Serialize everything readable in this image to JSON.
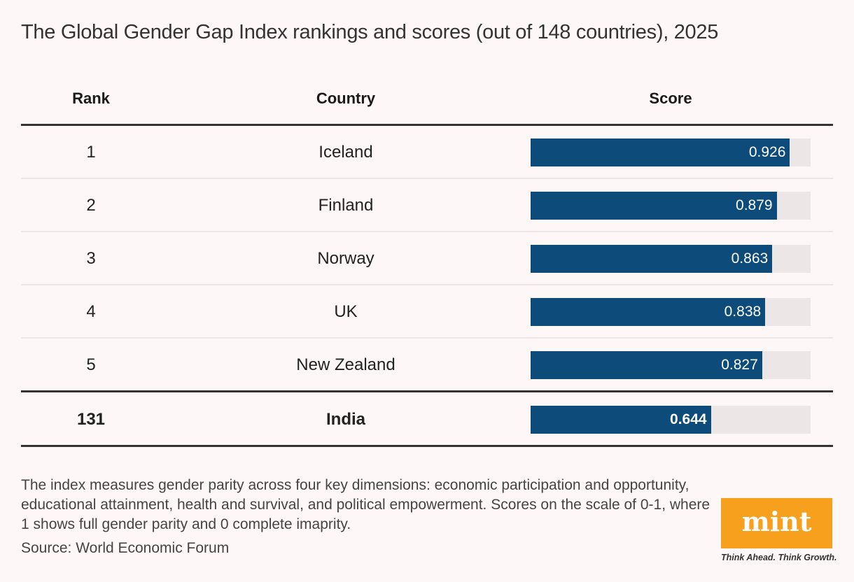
{
  "chart_data": {
    "type": "table",
    "title": "The Global Gender Gap Index rankings and scores (out of 148 countries), 2025",
    "columns": [
      "Rank",
      "Country",
      "Score"
    ],
    "xlim": [
      0,
      1
    ],
    "rows": [
      {
        "rank": "1",
        "country": "Iceland",
        "score": 0.926,
        "label": "0.926"
      },
      {
        "rank": "2",
        "country": "Finland",
        "score": 0.879,
        "label": "0.879"
      },
      {
        "rank": "3",
        "country": "Norway",
        "score": 0.863,
        "label": "0.863"
      },
      {
        "rank": "4",
        "country": "UK",
        "score": 0.838,
        "label": "0.838"
      },
      {
        "rank": "5",
        "country": "New Zealand",
        "score": 0.827,
        "label": "0.827"
      }
    ],
    "highlight": {
      "rank": "131",
      "country": "India",
      "score": 0.644,
      "label": "0.644"
    },
    "colors": {
      "bar": "#0c4b7a",
      "track": "#ece7e6",
      "background": "#fdf8f7"
    }
  },
  "note": "The index measures gender parity across four key dimensions: economic participation and opportunity, educational attainment, health and survival, and political empowerment. Scores on the scale of 0-1, where 1 shows full gender parity and 0 complete imaprity.",
  "source": "Source: World Economic Forum",
  "logo": {
    "text": "mint",
    "tagline": "Think Ahead. Think Growth.",
    "color": "#f7a01e"
  }
}
